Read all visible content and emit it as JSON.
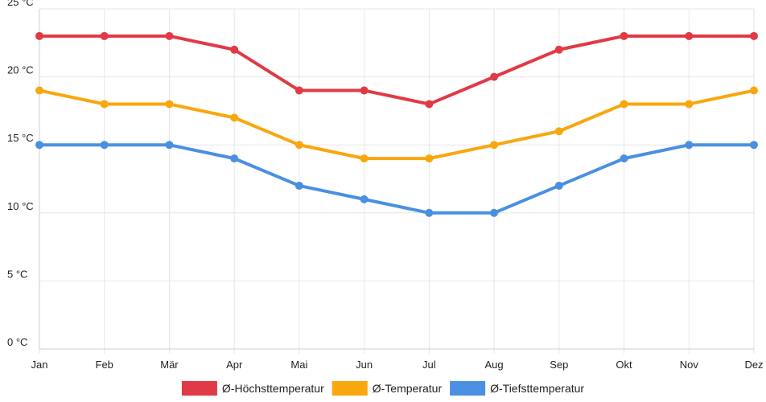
{
  "chart_data": {
    "type": "line",
    "categories": [
      "Jan",
      "Feb",
      "Mär",
      "Apr",
      "Mai",
      "Jun",
      "Jul",
      "Aug",
      "Sep",
      "Okt",
      "Nov",
      "Dez"
    ],
    "y_unit": "°C",
    "ylim": [
      0,
      25
    ],
    "y_ticks": [
      0,
      5,
      10,
      15,
      20,
      25
    ],
    "y_tick_labels": [
      "0 °C",
      "5 °C",
      "10 °C",
      "15 °C",
      "20 °C",
      "25 °C"
    ],
    "grid": true,
    "legend_position": "bottom-center",
    "series": [
      {
        "name": "Ø-Höchsttemperatur",
        "color": "#e03a46",
        "values": [
          23,
          23,
          23,
          22,
          19,
          19,
          18,
          20,
          22,
          23,
          23,
          23
        ]
      },
      {
        "name": "Ø-Temperatur",
        "color": "#f8a70e",
        "values": [
          19,
          18,
          18,
          17,
          15,
          14,
          14,
          15,
          16,
          18,
          18,
          19
        ]
      },
      {
        "name": "Ø-Tiefsttemperatur",
        "color": "#4a90e2",
        "values": [
          15,
          15,
          15,
          14,
          12,
          11,
          10,
          10,
          12,
          14,
          15,
          15
        ]
      }
    ]
  }
}
